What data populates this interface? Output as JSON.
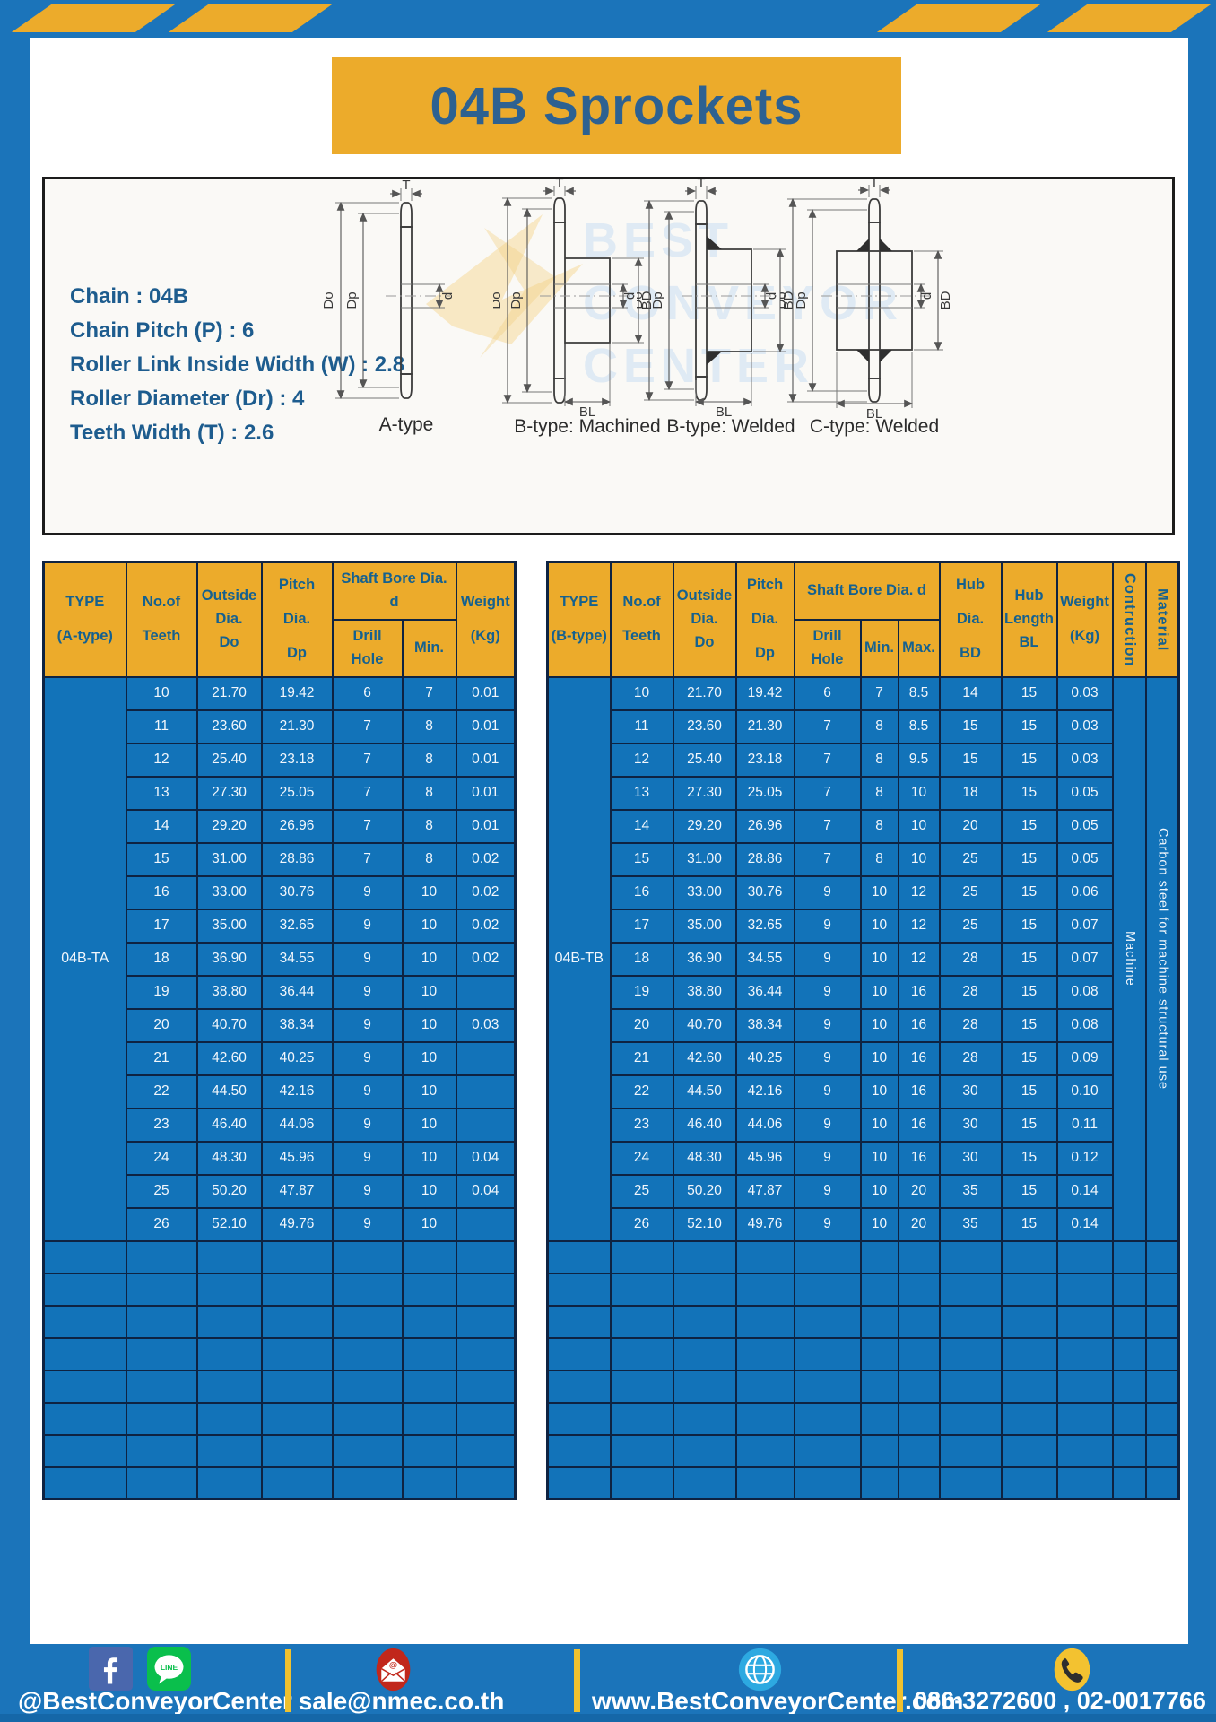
{
  "page": {
    "title": "04B Sprockets"
  },
  "specs": {
    "lines": [
      "Chain : 04B",
      "Chain Pitch (P) : 6",
      "Roller Link Inside Width (W) : 2.8",
      "Roller Diameter (Dr) : 4",
      "Teeth Width (T) : 2.6"
    ]
  },
  "diagram": {
    "dims": {
      "t": "T",
      "outer": "Do",
      "pitch": "Dp",
      "bore": "d",
      "hub": "BD",
      "hub_len": "BL"
    },
    "labels": {
      "a": "A-type",
      "b_machined": "B-type: Machined",
      "b_welded": "B-type: Welded",
      "c_welded": "C-type: Welded"
    },
    "watermark": [
      "BEST",
      "CONVEYOR",
      "CENTER"
    ]
  },
  "table_a": {
    "headers": {
      "type": "TYPE\n(A-type)",
      "teeth": "No.of\nTeeth",
      "outside": "Outside\nDia.\nDo",
      "pitch": "Pitch Dia.\nDp",
      "shaft_bore": "Shaft Bore Dia. d",
      "drill": "Drill Hole",
      "min": "Min.",
      "weight": "Weight\n(Kg)"
    },
    "group": "04B-TA",
    "rows": [
      [
        "10",
        "21.70",
        "19.42",
        "6",
        "7",
        "0.01"
      ],
      [
        "11",
        "23.60",
        "21.30",
        "7",
        "8",
        "0.01"
      ],
      [
        "12",
        "25.40",
        "23.18",
        "7",
        "8",
        "0.01"
      ],
      [
        "13",
        "27.30",
        "25.05",
        "7",
        "8",
        "0.01"
      ],
      [
        "14",
        "29.20",
        "26.96",
        "7",
        "8",
        "0.01"
      ],
      [
        "15",
        "31.00",
        "28.86",
        "7",
        "8",
        "0.02"
      ],
      [
        "16",
        "33.00",
        "30.76",
        "9",
        "10",
        "0.02"
      ],
      [
        "17",
        "35.00",
        "32.65",
        "9",
        "10",
        "0.02"
      ],
      [
        "18",
        "36.90",
        "34.55",
        "9",
        "10",
        "0.02"
      ],
      [
        "19",
        "38.80",
        "36.44",
        "9",
        "10",
        ""
      ],
      [
        "20",
        "40.70",
        "38.34",
        "9",
        "10",
        "0.03"
      ],
      [
        "21",
        "42.60",
        "40.25",
        "9",
        "10",
        ""
      ],
      [
        "22",
        "44.50",
        "42.16",
        "9",
        "10",
        ""
      ],
      [
        "23",
        "46.40",
        "44.06",
        "9",
        "10",
        ""
      ],
      [
        "24",
        "48.30",
        "45.96",
        "9",
        "10",
        "0.04"
      ],
      [
        "25",
        "50.20",
        "47.87",
        "9",
        "10",
        "0.04"
      ],
      [
        "26",
        "52.10",
        "49.76",
        "9",
        "10",
        ""
      ]
    ],
    "empty_rows": 8
  },
  "table_b": {
    "headers": {
      "type": "TYPE\n(B-type)",
      "teeth": "No.of\nTeeth",
      "outside": "Outside\nDia.\nDo",
      "pitch": "Pitch Dia.\nDp",
      "shaft_bore": "Shaft Bore Dia. d",
      "drill": "Drill Hole",
      "min": "Min.",
      "max": "Max.",
      "hub_dia": "Hub Dia.\nBD",
      "hub_len": "Hub\nLength\nBL",
      "weight": "Weight\n(Kg)",
      "construction": "Contruction",
      "material": "Material"
    },
    "group": "04B-TB",
    "construction": "Machine",
    "material": "Carbon steel for machine structural use",
    "rows": [
      [
        "10",
        "21.70",
        "19.42",
        "6",
        "7",
        "8.5",
        "14",
        "15",
        "0.03"
      ],
      [
        "11",
        "23.60",
        "21.30",
        "7",
        "8",
        "8.5",
        "15",
        "15",
        "0.03"
      ],
      [
        "12",
        "25.40",
        "23.18",
        "7",
        "8",
        "9.5",
        "15",
        "15",
        "0.03"
      ],
      [
        "13",
        "27.30",
        "25.05",
        "7",
        "8",
        "10",
        "18",
        "15",
        "0.05"
      ],
      [
        "14",
        "29.20",
        "26.96",
        "7",
        "8",
        "10",
        "20",
        "15",
        "0.05"
      ],
      [
        "15",
        "31.00",
        "28.86",
        "7",
        "8",
        "10",
        "25",
        "15",
        "0.05"
      ],
      [
        "16",
        "33.00",
        "30.76",
        "9",
        "10",
        "12",
        "25",
        "15",
        "0.06"
      ],
      [
        "17",
        "35.00",
        "32.65",
        "9",
        "10",
        "12",
        "25",
        "15",
        "0.07"
      ],
      [
        "18",
        "36.90",
        "34.55",
        "9",
        "10",
        "12",
        "28",
        "15",
        "0.07"
      ],
      [
        "19",
        "38.80",
        "36.44",
        "9",
        "10",
        "16",
        "28",
        "15",
        "0.08"
      ],
      [
        "20",
        "40.70",
        "38.34",
        "9",
        "10",
        "16",
        "28",
        "15",
        "0.08"
      ],
      [
        "21",
        "42.60",
        "40.25",
        "9",
        "10",
        "16",
        "28",
        "15",
        "0.09"
      ],
      [
        "22",
        "44.50",
        "42.16",
        "9",
        "10",
        "16",
        "30",
        "15",
        "0.10"
      ],
      [
        "23",
        "46.40",
        "44.06",
        "9",
        "10",
        "16",
        "30",
        "15",
        "0.11"
      ],
      [
        "24",
        "48.30",
        "45.96",
        "9",
        "10",
        "16",
        "30",
        "15",
        "0.12"
      ],
      [
        "25",
        "50.20",
        "47.87",
        "9",
        "10",
        "20",
        "35",
        "15",
        "0.14"
      ],
      [
        "26",
        "52.10",
        "49.76",
        "9",
        "10",
        "20",
        "35",
        "15",
        "0.14"
      ]
    ],
    "empty_rows": 8
  },
  "footer": {
    "social_label": "@BestConveyorCenter",
    "line_text": "LINE",
    "email_label": "sale@nmec.co.th",
    "website_label": "www.BestConveyorCenter.com",
    "phone_label": "086-3272600 , 02-0017766"
  },
  "colors": {
    "frame_blue": "#1b74ba",
    "table_blue": "#1273b9",
    "accent_yellow": "#ecab2b",
    "grid_navy": "#0e2342",
    "header_text": "#15618f",
    "title_text": "#2d6191"
  }
}
